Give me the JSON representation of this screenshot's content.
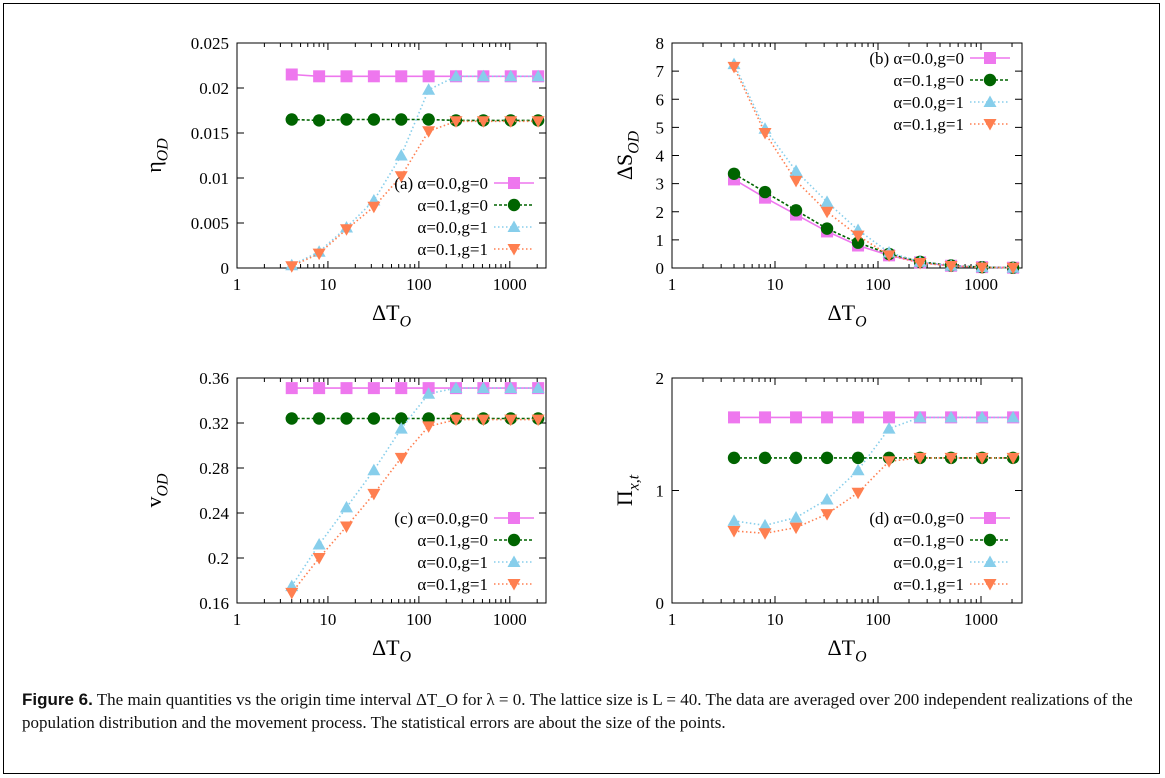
{
  "caption": {
    "label": "Figure 6.",
    "text": "  The main quantities vs the origin time interval ΔT_O for λ = 0. The lattice size is L = 40. The data are averaged over 200 independent realizations of the population distribution and the movement process. The statistical errors are about the size of the points."
  },
  "colors": {
    "a0g0": "#ee77ee",
    "a1g0": "#006400",
    "a0g1": "#87ceeb",
    "a1g1": "#ff7f50"
  },
  "chart_data": [
    {
      "type": "line",
      "panel": "(a)",
      "xscale": "log",
      "xlim": [
        1,
        2500
      ],
      "xticks": [
        1,
        10,
        100,
        1000
      ],
      "xlabel": "ΔT_O",
      "ylabel": "η_OD",
      "ylim": [
        0,
        0.025
      ],
      "yticks": [
        "0",
        "0.005",
        "0.01",
        "0.015",
        "0.02",
        "0.025"
      ],
      "legend_position": "lower-right",
      "x": [
        4,
        8,
        16,
        32,
        64,
        128,
        256,
        512,
        1024,
        2048
      ],
      "series": [
        {
          "name": "α=0.0,g=0",
          "values": [
            0.0215,
            0.0213,
            0.0213,
            0.0213,
            0.0213,
            0.0213,
            0.0213,
            0.0213,
            0.0213,
            0.0213
          ]
        },
        {
          "name": "α=0.1,g=0",
          "values": [
            0.0165,
            0.0164,
            0.0165,
            0.0165,
            0.0165,
            0.0165,
            0.0164,
            0.0164,
            0.0164,
            0.0164
          ]
        },
        {
          "name": "α=0.0,g=1",
          "values": [
            0.0003,
            0.0018,
            0.0045,
            0.0075,
            0.0125,
            0.0198,
            0.0213,
            0.0213,
            0.0213,
            0.0213
          ]
        },
        {
          "name": "α=0.1,g=1",
          "values": [
            0.0002,
            0.0016,
            0.0043,
            0.0068,
            0.0102,
            0.0152,
            0.0163,
            0.0163,
            0.0163,
            0.0163
          ]
        }
      ]
    },
    {
      "type": "line",
      "panel": "(b)",
      "xscale": "log",
      "xlim": [
        1,
        2500
      ],
      "xticks": [
        1,
        10,
        100,
        1000
      ],
      "xlabel": "ΔT_O",
      "ylabel": "ΔS_OD",
      "ylim": [
        0,
        8
      ],
      "yticks": [
        "0",
        "1",
        "2",
        "3",
        "4",
        "5",
        "6",
        "7",
        "8"
      ],
      "legend_position": "top-right",
      "x": [
        4,
        8,
        16,
        32,
        64,
        128,
        256,
        512,
        1024,
        2048
      ],
      "series": [
        {
          "name": "α=0.0,g=0",
          "values": [
            3.15,
            2.5,
            1.9,
            1.3,
            0.8,
            0.45,
            0.2,
            0.08,
            0.03,
            0.01
          ]
        },
        {
          "name": "α=0.1,g=0",
          "values": [
            3.35,
            2.7,
            2.05,
            1.4,
            0.9,
            0.5,
            0.22,
            0.09,
            0.03,
            0.01
          ]
        },
        {
          "name": "α=0.0,g=1",
          "values": [
            7.25,
            4.95,
            3.45,
            2.35,
            1.35,
            0.55,
            0.22,
            0.08,
            0.03,
            0.01
          ]
        },
        {
          "name": "α=0.1,g=1",
          "values": [
            7.15,
            4.8,
            3.1,
            2.0,
            1.15,
            0.45,
            0.18,
            0.07,
            0.02,
            0.01
          ]
        }
      ]
    },
    {
      "type": "line",
      "panel": "(c)",
      "xscale": "log",
      "xlim": [
        1,
        2500
      ],
      "xticks": [
        1,
        10,
        100,
        1000
      ],
      "xlabel": "ΔT_O",
      "ylabel": "v_OD",
      "ylim": [
        0.16,
        0.36
      ],
      "yticks": [
        "0.16",
        "0.2",
        "0.24",
        "0.28",
        "0.32",
        "0.36"
      ],
      "legend_position": "lower-right",
      "x": [
        4,
        8,
        16,
        32,
        64,
        128,
        256,
        512,
        1024,
        2048
      ],
      "series": [
        {
          "name": "α=0.0,g=0",
          "values": [
            0.351,
            0.351,
            0.351,
            0.351,
            0.351,
            0.351,
            0.351,
            0.351,
            0.351,
            0.351
          ]
        },
        {
          "name": "α=0.1,g=0",
          "values": [
            0.324,
            0.324,
            0.324,
            0.324,
            0.324,
            0.324,
            0.324,
            0.324,
            0.324,
            0.324
          ]
        },
        {
          "name": "α=0.0,g=1",
          "values": [
            0.175,
            0.212,
            0.245,
            0.278,
            0.315,
            0.346,
            0.351,
            0.351,
            0.351,
            0.351
          ]
        },
        {
          "name": "α=0.1,g=1",
          "values": [
            0.169,
            0.2,
            0.228,
            0.257,
            0.289,
            0.317,
            0.323,
            0.323,
            0.323,
            0.323
          ]
        }
      ]
    },
    {
      "type": "line",
      "panel": "(d)",
      "xscale": "log",
      "xlim": [
        1,
        2500
      ],
      "xticks": [
        1,
        10,
        100,
        1000
      ],
      "xlabel": "ΔT_O",
      "ylabel": "Π_x,t",
      "ylim": [
        0,
        2
      ],
      "yticks": [
        "0",
        "1",
        "2"
      ],
      "legend_position": "lower-right",
      "x": [
        4,
        8,
        16,
        32,
        64,
        128,
        256,
        512,
        1024,
        2048
      ],
      "series": [
        {
          "name": "α=0.0,g=0",
          "values": [
            1.65,
            1.65,
            1.65,
            1.65,
            1.65,
            1.65,
            1.65,
            1.65,
            1.65,
            1.65
          ]
        },
        {
          "name": "α=0.1,g=0",
          "values": [
            1.29,
            1.29,
            1.29,
            1.29,
            1.29,
            1.29,
            1.29,
            1.29,
            1.29,
            1.29
          ]
        },
        {
          "name": "α=0.0,g=1",
          "values": [
            0.73,
            0.69,
            0.76,
            0.92,
            1.18,
            1.55,
            1.65,
            1.65,
            1.65,
            1.65
          ]
        },
        {
          "name": "α=0.1,g=1",
          "values": [
            0.64,
            0.62,
            0.67,
            0.79,
            0.98,
            1.26,
            1.29,
            1.29,
            1.29,
            1.29
          ]
        }
      ]
    }
  ]
}
